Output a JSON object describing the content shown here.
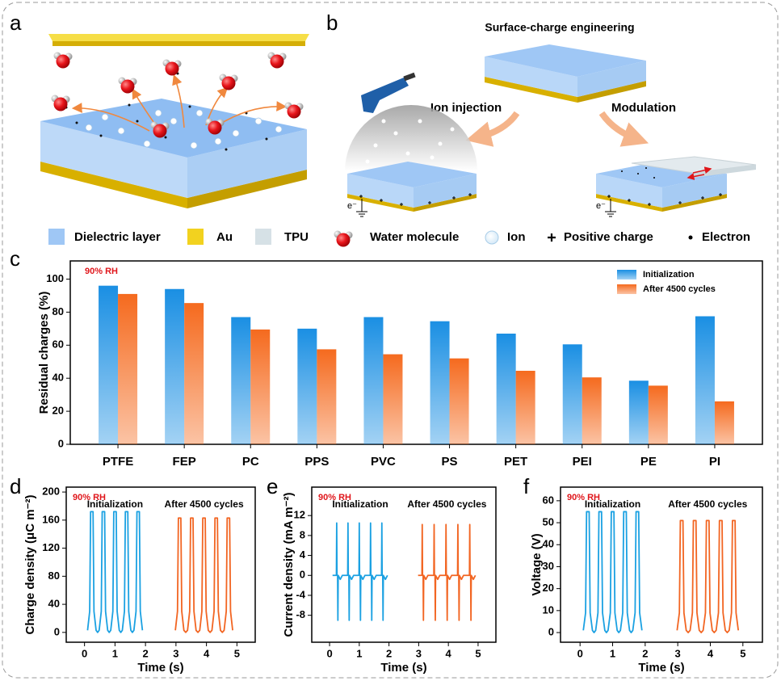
{
  "figure": {
    "panel_labels": [
      "a",
      "b"
    ],
    "diagram_b": {
      "title": "Surface-charge engineering",
      "left": "Ion injection",
      "right": "Modulation",
      "electron_label": "e⁻"
    },
    "legend": [
      "Dielectric layer",
      "Au",
      "TPU",
      "Water molecule",
      "Ion",
      "Positive charge",
      "Electron"
    ]
  },
  "chart_data": [
    {
      "type": "bar",
      "panel": "c",
      "ylabel": "Residual charges (%)",
      "annotation": "90% RH",
      "categories": [
        "PTFE",
        "FEP",
        "PC",
        "PPS",
        "PVC",
        "PS",
        "PET",
        "PEI",
        "PE",
        "PI"
      ],
      "series": [
        {
          "name": "Initialization",
          "color": "#1a8fe3",
          "values": [
            96,
            94,
            77,
            70,
            77,
            74.5,
            67,
            60.5,
            38.5,
            77.5
          ]
        },
        {
          "name": "After 4500 cycles",
          "color": "#f56a1e",
          "values": [
            91,
            85.5,
            69.5,
            57.5,
            54.5,
            52,
            44.5,
            40.5,
            35.5,
            26
          ]
        }
      ],
      "ylim": [
        0,
        111
      ],
      "yticks": [
        0,
        20,
        40,
        60,
        80,
        100
      ],
      "legend": "upper right"
    },
    {
      "type": "line",
      "panel": "d",
      "ylabel": "Charge density (μC m⁻²)",
      "xlabel": "Time (s)",
      "annotation": "90% RH",
      "xlim": [
        -0.6,
        5.6
      ],
      "xticks": [
        0,
        1,
        2,
        3,
        4,
        5
      ],
      "ylim": [
        -14,
        207
      ],
      "yticks": [
        0,
        40,
        80,
        120,
        160,
        200
      ],
      "series": [
        {
          "name": "Initialization",
          "color": "#1ba1e2",
          "x": [
            0.1,
            0.17,
            0.2,
            0.28,
            0.31,
            0.38,
            0.43,
            0.48,
            0.55,
            0.58,
            0.66,
            0.69,
            0.76,
            0.81,
            0.86,
            0.93,
            0.96,
            1.04,
            1.07,
            1.14,
            1.19,
            1.24,
            1.31,
            1.34,
            1.42,
            1.45,
            1.52,
            1.57,
            1.62,
            1.69,
            1.72,
            1.8,
            1.83,
            1.9
          ],
          "values": [
            3,
            30,
            172,
            172,
            30,
            3,
            0,
            3,
            30,
            172,
            172,
            30,
            3,
            0,
            3,
            30,
            172,
            172,
            30,
            3,
            0,
            3,
            30,
            172,
            172,
            30,
            3,
            0,
            3,
            30,
            172,
            172,
            30,
            3
          ]
        },
        {
          "name": "After 4500 cycles",
          "color": "#f26522",
          "x": [
            2.98,
            3.05,
            3.08,
            3.16,
            3.19,
            3.26,
            3.32,
            3.38,
            3.45,
            3.48,
            3.56,
            3.59,
            3.66,
            3.72,
            3.78,
            3.85,
            3.88,
            3.96,
            3.99,
            4.06,
            4.12,
            4.18,
            4.25,
            4.28,
            4.36,
            4.39,
            4.46,
            4.52,
            4.58,
            4.65,
            4.68,
            4.76,
            4.79,
            4.86
          ],
          "values": [
            3,
            30,
            163,
            163,
            30,
            3,
            0,
            3,
            30,
            163,
            163,
            30,
            3,
            0,
            3,
            30,
            163,
            163,
            30,
            3,
            0,
            3,
            30,
            163,
            163,
            30,
            3,
            0,
            3,
            30,
            163,
            163,
            30,
            3
          ]
        }
      ]
    },
    {
      "type": "line",
      "panel": "e",
      "ylabel": "Current density (mA m⁻²)",
      "xlabel": "Time (s)",
      "annotation": "90% RH",
      "xlim": [
        -0.6,
        5.6
      ],
      "xticks": [
        0,
        1,
        2,
        3,
        4,
        5
      ],
      "ylim": [
        -13.4,
        17.7
      ],
      "yticks": [
        -8,
        -4,
        0,
        4,
        8,
        12
      ],
      "series": [
        {
          "name": "Initialization",
          "color": "#1ba1e2",
          "x": [
            0.1,
            0.23,
            0.24,
            0.25,
            0.27,
            0.28,
            0.29,
            0.36,
            0.43,
            0.48,
            0.61,
            0.62,
            0.63,
            0.65,
            0.66,
            0.67,
            0.74,
            0.81,
            0.86,
            0.99,
            1.0,
            1.01,
            1.03,
            1.04,
            1.05,
            1.12,
            1.19,
            1.24,
            1.37,
            1.38,
            1.39,
            1.41,
            1.42,
            1.43,
            1.5,
            1.57,
            1.62,
            1.75,
            1.76,
            1.77,
            1.79,
            1.8,
            1.81,
            1.88,
            1.95
          ],
          "values": [
            0,
            0,
            10.5,
            0,
            0,
            -9,
            0,
            -0.8,
            0,
            0,
            0,
            10.5,
            0,
            0,
            -9,
            0,
            -0.8,
            0,
            0,
            0,
            10.5,
            0,
            0,
            -9,
            0,
            -0.8,
            0,
            0,
            0,
            10.5,
            0,
            0,
            -9,
            0,
            -0.8,
            0,
            0,
            0,
            10.5,
            0,
            0,
            -9,
            0,
            -0.8,
            0
          ]
        },
        {
          "name": "After 4500 cycles",
          "color": "#f26522",
          "x": [
            2.98,
            3.11,
            3.12,
            3.13,
            3.15,
            3.16,
            3.17,
            3.24,
            3.31,
            3.38,
            3.51,
            3.52,
            3.53,
            3.55,
            3.56,
            3.57,
            3.64,
            3.71,
            3.78,
            3.91,
            3.92,
            3.93,
            3.95,
            3.96,
            3.97,
            4.04,
            4.11,
            4.18,
            4.31,
            4.32,
            4.33,
            4.35,
            4.36,
            4.37,
            4.44,
            4.51,
            4.58,
            4.71,
            4.72,
            4.73,
            4.75,
            4.76,
            4.77,
            4.84,
            4.91
          ],
          "values": [
            0,
            0,
            10.2,
            0,
            0,
            -9,
            0,
            -0.8,
            0,
            0,
            0,
            10.2,
            0,
            0,
            -9,
            0,
            -0.8,
            0,
            0,
            0,
            10.2,
            0,
            0,
            -9,
            0,
            -0.8,
            0,
            0,
            0,
            10.2,
            0,
            0,
            -9,
            0,
            -0.8,
            0,
            0,
            0,
            10.2,
            0,
            0,
            -9,
            0,
            -0.8,
            0
          ]
        }
      ]
    },
    {
      "type": "line",
      "panel": "f",
      "ylabel": "Voltage (V)",
      "xlabel": "Time (s)",
      "annotation": "90% RH",
      "xlim": [
        -0.6,
        5.6
      ],
      "xticks": [
        0,
        1,
        2,
        3,
        4,
        5
      ],
      "ylim": [
        -4.4,
        66.2
      ],
      "yticks": [
        0,
        10,
        20,
        30,
        40,
        50,
        60
      ],
      "series": [
        {
          "name": "Initialization",
          "color": "#1ba1e2",
          "x": [
            0.1,
            0.17,
            0.2,
            0.28,
            0.31,
            0.38,
            0.43,
            0.48,
            0.55,
            0.58,
            0.66,
            0.69,
            0.76,
            0.81,
            0.86,
            0.93,
            0.96,
            1.04,
            1.07,
            1.14,
            1.19,
            1.24,
            1.31,
            1.34,
            1.42,
            1.45,
            1.52,
            1.57,
            1.62,
            1.69,
            1.72,
            1.8,
            1.83,
            1.9
          ],
          "values": [
            1,
            9,
            55,
            55,
            9,
            1,
            0,
            1,
            9,
            55,
            55,
            9,
            1,
            0,
            1,
            9,
            55,
            55,
            9,
            1,
            0,
            1,
            9,
            55,
            55,
            9,
            1,
            0,
            1,
            9,
            55,
            55,
            9,
            1
          ]
        },
        {
          "name": "After 4500 cycles",
          "color": "#f26522",
          "x": [
            2.98,
            3.05,
            3.08,
            3.16,
            3.19,
            3.26,
            3.32,
            3.38,
            3.45,
            3.48,
            3.56,
            3.59,
            3.66,
            3.72,
            3.78,
            3.85,
            3.88,
            3.96,
            3.99,
            4.06,
            4.12,
            4.18,
            4.25,
            4.28,
            4.36,
            4.39,
            4.46,
            4.52,
            4.58,
            4.65,
            4.68,
            4.76,
            4.79,
            4.86
          ],
          "values": [
            1,
            9,
            51,
            51,
            9,
            1,
            0,
            1,
            9,
            51,
            51,
            9,
            1,
            0,
            1,
            9,
            51,
            51,
            9,
            1,
            0,
            1,
            9,
            51,
            51,
            9,
            1,
            0,
            1,
            9,
            51,
            51,
            9,
            1
          ]
        }
      ]
    }
  ]
}
